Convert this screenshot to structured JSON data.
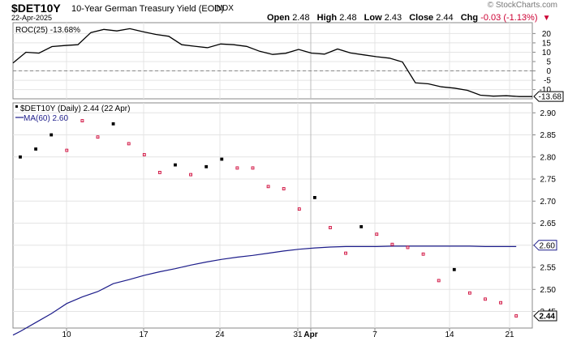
{
  "header": {
    "symbol": "$DET10Y",
    "subtitle": "10-Year German Treasury Yield (EOD)",
    "exchange": "INDX",
    "date": "22-Apr-2025",
    "watermark": "© StockCharts.com",
    "open_label": "Open",
    "open": "2.48",
    "high_label": "High",
    "high": "2.48",
    "low_label": "Low",
    "low": "2.43",
    "close_label": "Close",
    "close": "2.44",
    "chg_label": "Chg",
    "chg": "-0.03 (-1.13%)"
  },
  "colors": {
    "ma": "#1c1c8a",
    "down": "#cc0033",
    "up": "#000000",
    "roc": "#000000"
  },
  "chart_data": [
    {
      "type": "line",
      "legend": [
        "ROC(25) -13.68%"
      ],
      "series": [
        {
          "name": "ROC(25)",
          "values": [
            4.2,
            10.0,
            9.5,
            13.0,
            13.6,
            14.0,
            20.5,
            22.2,
            21.4,
            22.6,
            21.0,
            19.5,
            18.5,
            14.0,
            13.2,
            12.4,
            14.4,
            14.0,
            13.1,
            10.5,
            8.8,
            9.4,
            11.5,
            9.5,
            9.0,
            11.7,
            9.6,
            8.6,
            7.6,
            6.8,
            4.8,
            -6.4,
            -6.9,
            -8.5,
            -9.2,
            -10.4,
            -13.0,
            -13.5,
            -13.3,
            -13.7,
            -13.7
          ]
        }
      ],
      "yticks": [
        20,
        15,
        10,
        5,
        0,
        -5,
        -10
      ],
      "ylim": [
        -14.5,
        24.5
      ],
      "zero_line": true,
      "last_value_label": "-13.68"
    },
    {
      "type": "scatter",
      "legend": [
        "$DET10Y (Daily) 2.44 (22 Apr)",
        "MA(60) 2.60"
      ],
      "price_points": [
        {
          "v": 2.8,
          "d": "up"
        },
        {
          "v": 2.818,
          "d": "up"
        },
        {
          "v": 2.85,
          "d": "up"
        },
        {
          "v": 2.815,
          "d": "down"
        },
        {
          "v": 2.882,
          "d": "down"
        },
        {
          "v": 2.845,
          "d": "down"
        },
        {
          "v": 2.875,
          "d": "up"
        },
        {
          "v": 2.83,
          "d": "down"
        },
        {
          "v": 2.805,
          "d": "down"
        },
        {
          "v": 2.765,
          "d": "down"
        },
        {
          "v": 2.782,
          "d": "up"
        },
        {
          "v": 2.76,
          "d": "down"
        },
        {
          "v": 2.778,
          "d": "up"
        },
        {
          "v": 2.795,
          "d": "up"
        },
        {
          "v": 2.775,
          "d": "down"
        },
        {
          "v": 2.775,
          "d": "down"
        },
        {
          "v": 2.733,
          "d": "down"
        },
        {
          "v": 2.728,
          "d": "down"
        },
        {
          "v": 2.682,
          "d": "down"
        },
        {
          "v": 2.708,
          "d": "up"
        },
        {
          "v": 2.64,
          "d": "down"
        },
        {
          "v": 2.582,
          "d": "down"
        },
        {
          "v": 2.642,
          "d": "up"
        },
        {
          "v": 2.625,
          "d": "down"
        },
        {
          "v": 2.602,
          "d": "down"
        },
        {
          "v": 2.595,
          "d": "down"
        },
        {
          "v": 2.58,
          "d": "down"
        },
        {
          "v": 2.52,
          "d": "down"
        },
        {
          "v": 2.545,
          "d": "up"
        },
        {
          "v": 2.492,
          "d": "down"
        },
        {
          "v": 2.478,
          "d": "down"
        },
        {
          "v": 2.47,
          "d": "down"
        },
        {
          "v": 2.44,
          "d": "down"
        }
      ],
      "ma_series": {
        "name": "MA(60)",
        "values": [
          2.405,
          2.425,
          2.445,
          2.468,
          2.483,
          2.495,
          2.513,
          2.522,
          2.532,
          2.54,
          2.547,
          2.555,
          2.562,
          2.568,
          2.573,
          2.577,
          2.582,
          2.587,
          2.591,
          2.594,
          2.596,
          2.597,
          2.597,
          2.597,
          2.598,
          2.598,
          2.598,
          2.598,
          2.598,
          2.598,
          2.597,
          2.597,
          2.597
        ]
      },
      "yticks": [
        2.9,
        2.85,
        2.8,
        2.75,
        2.7,
        2.65,
        2.6,
        2.55,
        2.5,
        2.45
      ],
      "ylim": [
        2.4125,
        2.9225
      ],
      "value_labels": [
        "2.60",
        "2.44"
      ]
    }
  ],
  "x_axis": {
    "labels": [
      {
        "text": "10",
        "bold": false
      },
      {
        "text": "17",
        "bold": false
      },
      {
        "text": "24",
        "bold": false
      },
      {
        "text": "31",
        "bold": false
      },
      {
        "text": "Apr",
        "bold": true
      },
      {
        "text": "7",
        "bold": false
      },
      {
        "text": "14",
        "bold": false
      },
      {
        "text": "21",
        "bold": false
      }
    ]
  }
}
